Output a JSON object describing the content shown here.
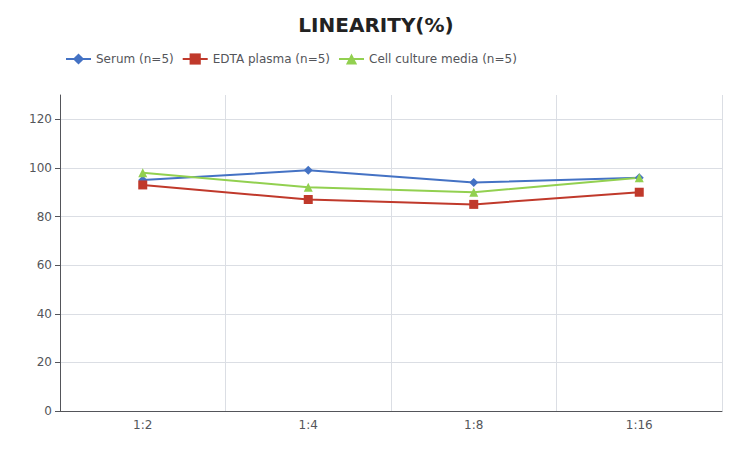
{
  "chart_data": {
    "type": "line",
    "title": "LINEARITY(%)",
    "categories": [
      "1:2",
      "1:4",
      "1:8",
      "1:16"
    ],
    "series": [
      {
        "name": "Serum (n=5)",
        "color": "#4472C4",
        "marker": "diamond",
        "values": [
          95,
          99,
          94,
          96
        ]
      },
      {
        "name": "EDTA plasma (n=5)",
        "color": "#C0392B",
        "marker": "square",
        "values": [
          93,
          87,
          85,
          90
        ]
      },
      {
        "name": "Cell culture media (n=5)",
        "color": "#92D050",
        "marker": "triangle",
        "values": [
          98,
          92,
          90,
          96
        ]
      }
    ],
    "ylim": [
      0,
      130
    ],
    "yticks": [
      0,
      20,
      40,
      60,
      80,
      100,
      120
    ],
    "grid": true,
    "legend": "upper left"
  }
}
